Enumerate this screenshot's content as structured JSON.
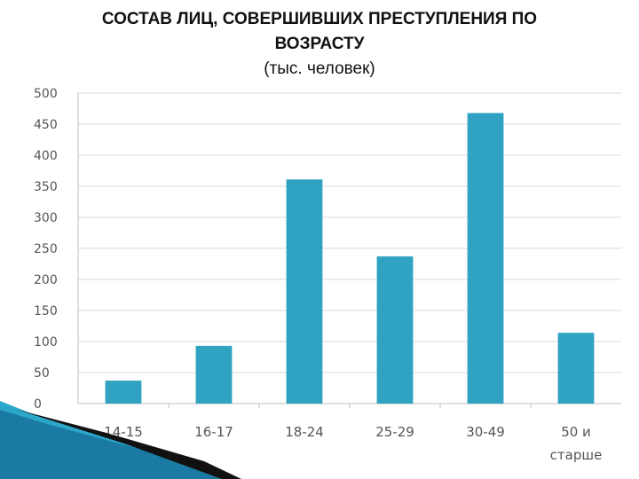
{
  "title": {
    "line1": "СОСТАВ ЛИЦ, СОВЕРШИВШИХ ПРЕСТУПЛЕНИЯ ПО",
    "line2": "ВОЗРАСТУ",
    "subtitle": "(тыс. человек)"
  },
  "colors": {
    "bar": "#2fa3c1",
    "grid": "#d9d9d9",
    "axis": "#bfbfbf"
  },
  "chart_data": {
    "type": "bar",
    "categories": [
      "14-15",
      "16-17",
      "18-24",
      "25-29",
      "30-49",
      "50 и старше"
    ],
    "category_lines": [
      [
        "14-15"
      ],
      [
        "16-17"
      ],
      [
        "18-24"
      ],
      [
        "25-29"
      ],
      [
        "30-49"
      ],
      [
        "50 и",
        "старше"
      ]
    ],
    "values": [
      37,
      93,
      361,
      237,
      468,
      114
    ],
    "ylim": [
      0,
      500
    ],
    "yticks": [
      0,
      50,
      100,
      150,
      200,
      250,
      300,
      350,
      400,
      450,
      500
    ],
    "grid": true,
    "legend": "none",
    "title": "СОСТАВ ЛИЦ, СОВЕРШИВШИХ ПРЕСТУПЛЕНИЯ ПО ВОЗРАСТУ",
    "subtitle": "(тыс. человек)"
  }
}
